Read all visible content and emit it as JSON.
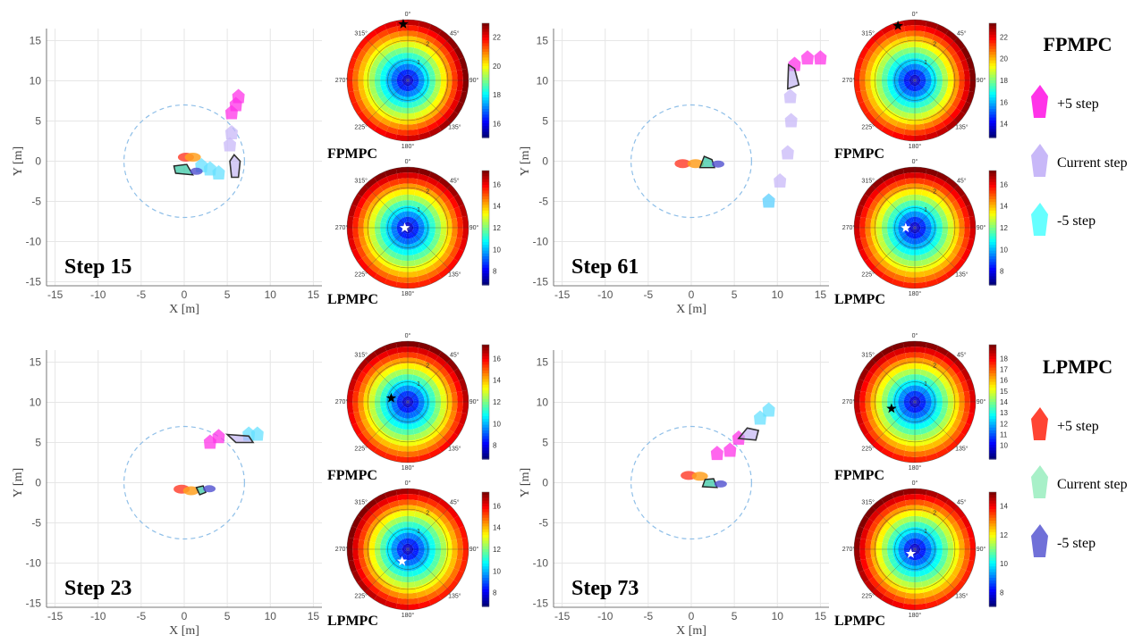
{
  "panels": [
    {
      "step_label": "Step 15",
      "xlabel": "X [m]",
      "ylabel": "Y [m]",
      "xticks": [
        "-15",
        "-10",
        "-5",
        "0",
        "5",
        "10",
        "15"
      ],
      "yticks": [
        "15",
        "10",
        "5",
        "0",
        "-5",
        "-10",
        "-15"
      ],
      "top_polar": {
        "label": "FPMPC",
        "cb_ticks": [
          "22",
          "20",
          "18",
          "16"
        ],
        "star_color": "#000000"
      },
      "bottom_polar": {
        "label": "LPMPC",
        "cb_ticks": [
          "16",
          "14",
          "12",
          "10",
          "8"
        ],
        "star_color": "#ffffff"
      }
    },
    {
      "step_label": "Step 61",
      "xlabel": "X [m]",
      "ylabel": "Y [m]",
      "xticks": [
        "-15",
        "-10",
        "-5",
        "0",
        "5",
        "10",
        "15"
      ],
      "yticks": [
        "15",
        "10",
        "5",
        "0",
        "-5",
        "-10",
        "-15"
      ],
      "top_polar": {
        "label": "FPMPC",
        "cb_ticks": [
          "22",
          "20",
          "18",
          "16",
          "14"
        ],
        "star_color": "#000000"
      },
      "bottom_polar": {
        "label": "LPMPC",
        "cb_ticks": [
          "16",
          "14",
          "12",
          "10",
          "8"
        ],
        "star_color": "#ffffff"
      }
    },
    {
      "step_label": "Step 23",
      "xlabel": "X [m]",
      "ylabel": "Y [m]",
      "xticks": [
        "-15",
        "-10",
        "-5",
        "0",
        "5",
        "10",
        "15"
      ],
      "yticks": [
        "15",
        "10",
        "5",
        "0",
        "-5",
        "-10",
        "-15"
      ],
      "top_polar": {
        "label": "FPMPC",
        "cb_ticks": [
          "16",
          "14",
          "12",
          "10",
          "8"
        ],
        "star_color": "#000000"
      },
      "bottom_polar": {
        "label": "LPMPC",
        "cb_ticks": [
          "16",
          "14",
          "12",
          "10",
          "8"
        ],
        "star_color": "#ffffff"
      }
    },
    {
      "step_label": "Step 73",
      "xlabel": "X [m]",
      "ylabel": "Y [m]",
      "xticks": [
        "-15",
        "-10",
        "-5",
        "0",
        "5",
        "10",
        "15"
      ],
      "yticks": [
        "15",
        "10",
        "5",
        "0",
        "-5",
        "-10",
        "-15"
      ],
      "top_polar": {
        "label": "FPMPC",
        "cb_ticks": [
          "18",
          "17",
          "16",
          "15",
          "14",
          "13",
          "12",
          "11",
          "10"
        ],
        "star_color": "#000000"
      },
      "bottom_polar": {
        "label": "LPMPC",
        "cb_ticks": [
          "14",
          "12",
          "10",
          "8"
        ],
        "star_color": "#ffffff"
      }
    }
  ],
  "polar_angle_labels": [
    "0°",
    "45°",
    "90°",
    "135°",
    "180°",
    "225°",
    "270°",
    "315°"
  ],
  "polar_radius_labels": [
    "1",
    "2"
  ],
  "legend": {
    "fpmpc": {
      "title": "FPMPC",
      "items": [
        {
          "label": "+5 step",
          "color": "#ff33e8"
        },
        {
          "label": "Current step",
          "color": "#c8b8f8"
        },
        {
          "label": "-5 step",
          "color": "#66ffff"
        }
      ]
    },
    "lpmpc": {
      "title": "LPMPC",
      "items": [
        {
          "label": "+5 step",
          "color": "#ff4433"
        },
        {
          "label": "Current step",
          "color": "#a8f0c8"
        },
        {
          "label": "-5 step",
          "color": "#7070d8"
        }
      ]
    }
  }
}
